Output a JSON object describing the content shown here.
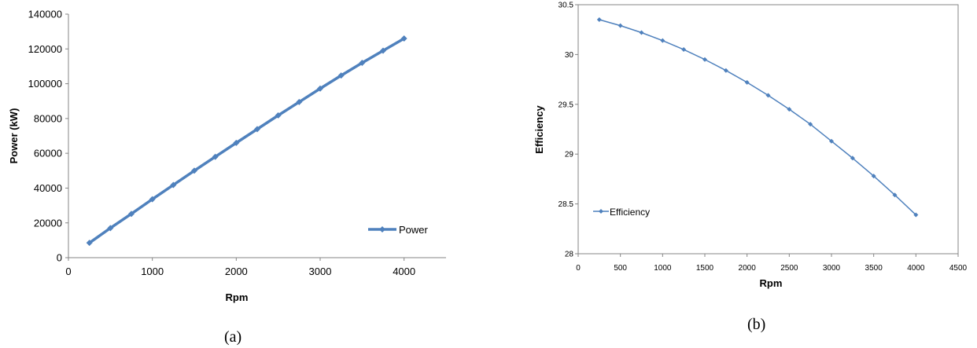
{
  "chart_data": [
    {
      "type": "line",
      "caption": "(a)",
      "xlabel": "Rpm",
      "ylabel": "Power (kW)",
      "xlim": [
        0,
        4500
      ],
      "ylim": [
        0,
        140000
      ],
      "x_ticks": [
        "0",
        "1000",
        "2000",
        "3000",
        "4000"
      ],
      "y_ticks": [
        "0",
        "20000",
        "40000",
        "60000",
        "80000",
        "100000",
        "120000",
        "140000"
      ],
      "grid": false,
      "legend_position": "bottom-right",
      "series_color": "#4f81bd",
      "series": [
        {
          "name": "Power",
          "x": [
            250,
            500,
            750,
            1000,
            1250,
            1500,
            1750,
            2000,
            2250,
            2500,
            2750,
            3000,
            3250,
            3500,
            3750,
            4000
          ],
          "y": [
            8500,
            17000,
            25200,
            33600,
            41800,
            50000,
            58000,
            66000,
            73900,
            81800,
            89500,
            97200,
            104700,
            112000,
            119000,
            126000
          ]
        }
      ]
    },
    {
      "type": "line",
      "caption": "(b)",
      "xlabel": "Rpm",
      "ylabel": "Efficiency",
      "xlim": [
        0,
        4500
      ],
      "ylim": [
        28,
        30.5
      ],
      "x_ticks": [
        "0",
        "500",
        "1000",
        "1500",
        "2000",
        "2500",
        "3000",
        "3500",
        "4000",
        "4500"
      ],
      "y_ticks": [
        "28",
        "28.5",
        "29",
        "29.5",
        "30",
        "30.5"
      ],
      "grid": false,
      "legend_position": "left",
      "series_color": "#4f81bd",
      "series": [
        {
          "name": "Efficiency",
          "x": [
            250,
            500,
            750,
            1000,
            1250,
            1500,
            1750,
            2000,
            2250,
            2500,
            2750,
            3000,
            3250,
            3500,
            3750,
            4000
          ],
          "y": [
            30.35,
            30.29,
            30.22,
            30.14,
            30.05,
            29.95,
            29.84,
            29.72,
            29.59,
            29.45,
            29.3,
            29.13,
            28.96,
            28.78,
            28.59,
            28.39
          ]
        }
      ]
    }
  ]
}
